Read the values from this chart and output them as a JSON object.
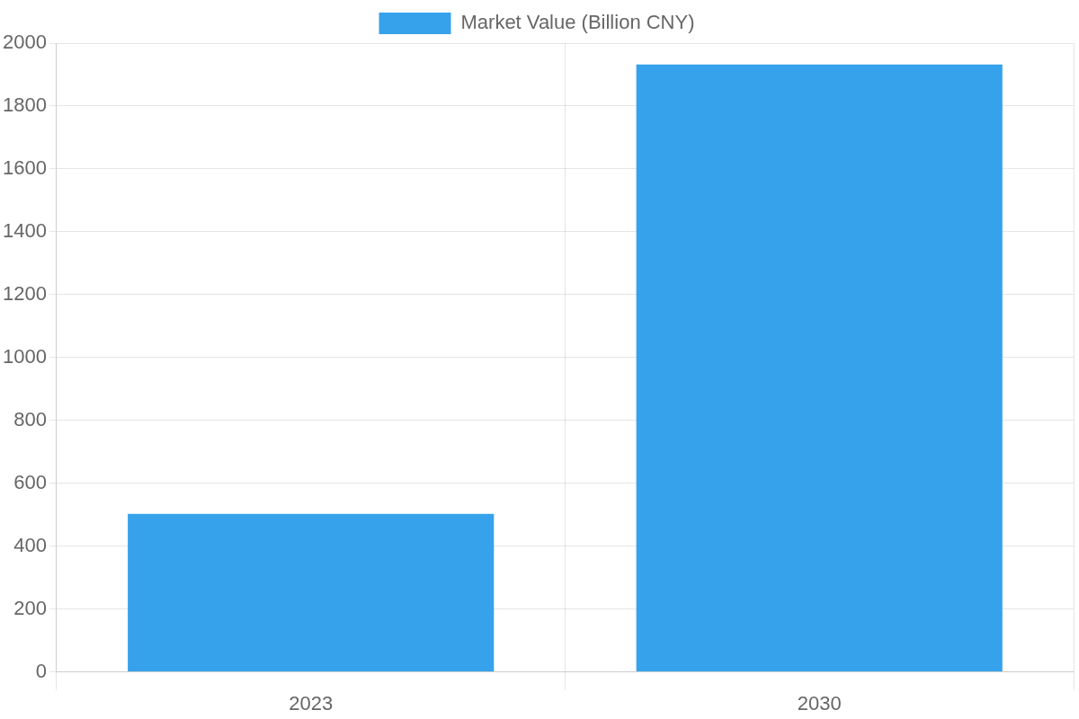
{
  "chart_data": {
    "type": "bar",
    "categories": [
      "2023",
      "2030"
    ],
    "series": [
      {
        "name": "Market Value (Billion CNY)",
        "color": "#36a2eb",
        "values": [
          503,
          1932
        ]
      }
    ],
    "ylim": [
      0,
      2000
    ],
    "yticks": [
      0,
      200,
      400,
      600,
      800,
      1000,
      1200,
      1400,
      1600,
      1800,
      2000
    ],
    "grid": true,
    "legend": "top"
  }
}
